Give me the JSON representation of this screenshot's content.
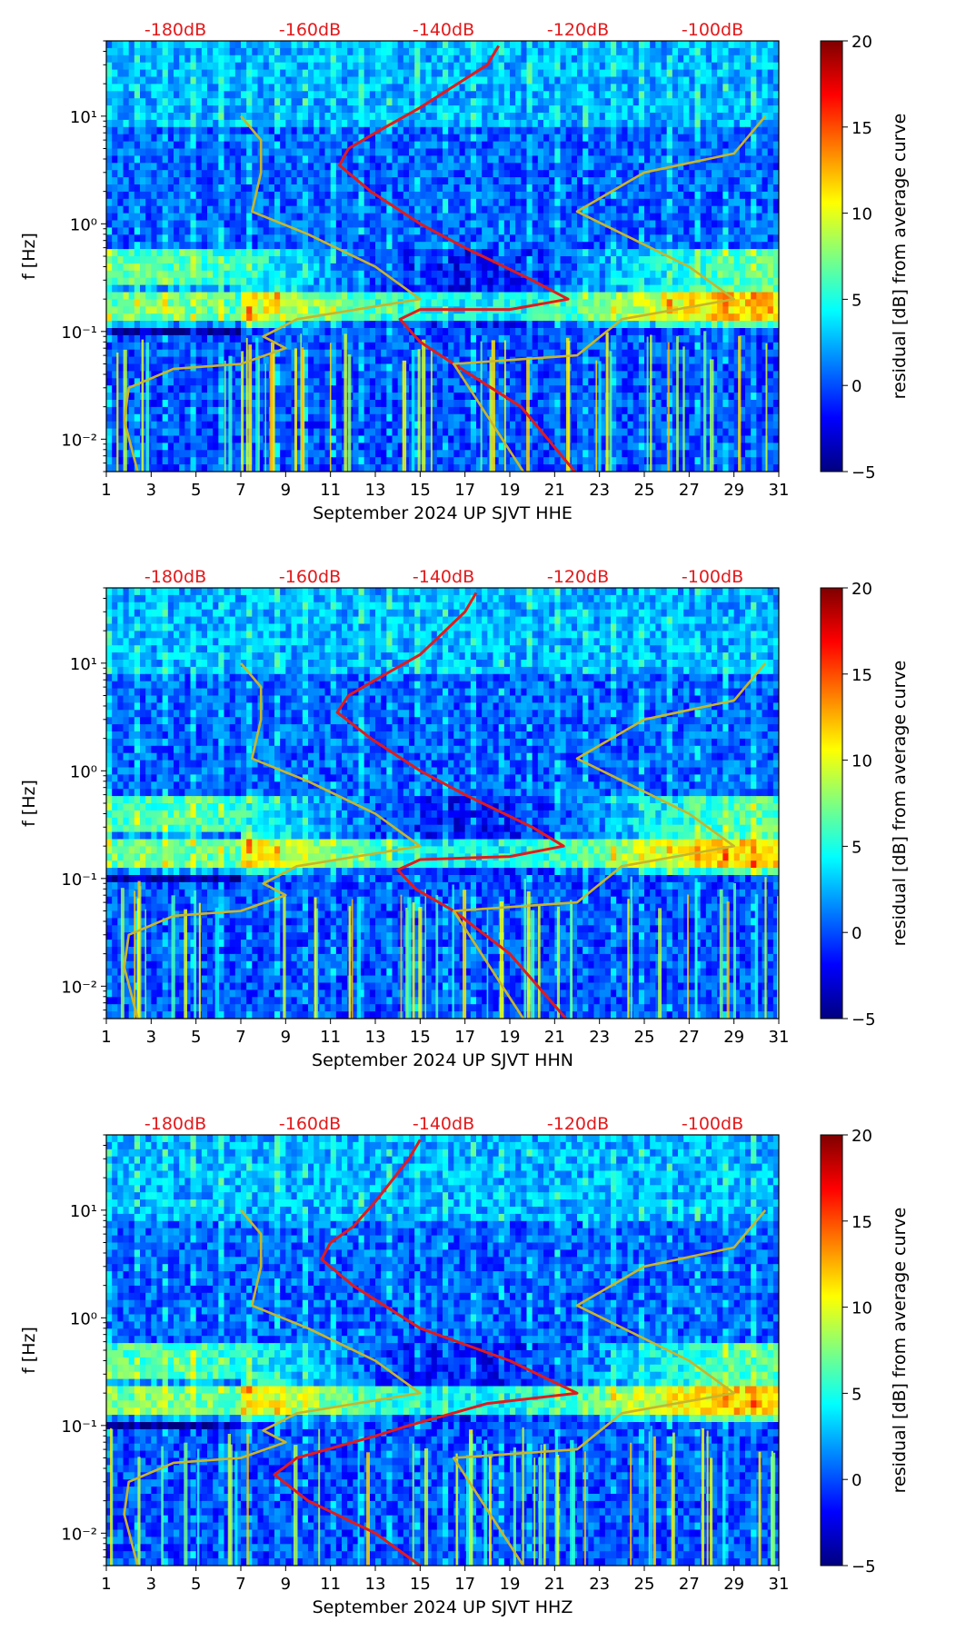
{
  "colors": {
    "noise_curve": "#e31a1c",
    "model_curve": "#c9b52a",
    "db_label": "#e31a1c",
    "colormap": [
      "#00007f",
      "#0000ff",
      "#007fff",
      "#00ffff",
      "#7fff7f",
      "#ffff00",
      "#ff7f00",
      "#ff0000",
      "#7f0000"
    ]
  },
  "chart_data": [
    {
      "type": "heatmap",
      "xlabel": "September 2024 UP SJVT  HHE",
      "ylabel": "f [Hz]",
      "x_ticks": [
        "1",
        "3",
        "5",
        "7",
        "9",
        "11",
        "13",
        "15",
        "17",
        "19",
        "21",
        "23",
        "25",
        "27",
        "29",
        "31"
      ],
      "xlim": [
        1,
        31
      ],
      "y_scale": "log",
      "y_ticks": [
        "10⁻²",
        "10⁻¹",
        "10⁰",
        "10¹"
      ],
      "ylim": [
        0.005,
        50
      ],
      "top_ticks": [
        "-180dB",
        "-160dB",
        "-140dB",
        "-120dB",
        "-100dB"
      ],
      "colorbar": {
        "label": "residual [dB] from average curve",
        "ticks": [
          "−5",
          "0",
          "5",
          "10",
          "15",
          "20"
        ],
        "range": [
          -5,
          20
        ]
      },
      "overlay_curves": [
        {
          "color": "red",
          "points": [
            [
              21.9,
              0.005
            ],
            [
              19.5,
              0.02
            ],
            [
              16.5,
              0.05
            ],
            [
              15.0,
              0.08
            ],
            [
              14.1,
              0.13
            ],
            [
              15.0,
              0.16
            ],
            [
              19.0,
              0.16
            ],
            [
              21.6,
              0.2
            ],
            [
              20.0,
              0.3
            ],
            [
              17.0,
              0.6
            ],
            [
              15.0,
              1.0
            ],
            [
              12.8,
              2.0
            ],
            [
              11.4,
              3.5
            ],
            [
              11.8,
              5.0
            ],
            [
              13.0,
              7.0
            ],
            [
              15.0,
              12.0
            ],
            [
              18.0,
              30.0
            ],
            [
              18.5,
              45.0
            ]
          ]
        },
        {
          "color": "olive",
          "points": [
            [
              2.4,
              0.005
            ],
            [
              1.8,
              0.015
            ],
            [
              2.0,
              0.03
            ],
            [
              4.0,
              0.045
            ],
            [
              7.0,
              0.05
            ],
            [
              9.0,
              0.07
            ],
            [
              8.0,
              0.09
            ],
            [
              9.5,
              0.13
            ],
            [
              15.0,
              0.2
            ],
            [
              13.0,
              0.4
            ],
            [
              10.0,
              0.8
            ],
            [
              7.5,
              1.3
            ],
            [
              7.9,
              3.0
            ],
            [
              7.9,
              6.0
            ],
            [
              7.0,
              10.0
            ]
          ]
        },
        {
          "color": "olive",
          "points": [
            [
              19.6,
              0.005
            ],
            [
              16.5,
              0.05
            ],
            [
              22.0,
              0.06
            ],
            [
              24.0,
              0.13
            ],
            [
              29.0,
              0.2
            ],
            [
              27.0,
              0.4
            ],
            [
              22.0,
              1.3
            ],
            [
              25.0,
              3.0
            ],
            [
              29.0,
              4.5
            ],
            [
              30.4,
              10.0
            ]
          ]
        }
      ]
    },
    {
      "type": "heatmap",
      "xlabel": "September 2024 UP SJVT  HHN",
      "ylabel": "f [Hz]",
      "x_ticks": [
        "1",
        "3",
        "5",
        "7",
        "9",
        "11",
        "13",
        "15",
        "17",
        "19",
        "21",
        "23",
        "25",
        "27",
        "29",
        "31"
      ],
      "xlim": [
        1,
        31
      ],
      "y_scale": "log",
      "y_ticks": [
        "10⁻²",
        "10⁻¹",
        "10⁰",
        "10¹"
      ],
      "ylim": [
        0.005,
        50
      ],
      "top_ticks": [
        "-180dB",
        "-160dB",
        "-140dB",
        "-120dB",
        "-100dB"
      ],
      "colorbar": {
        "label": "residual [dB] from average curve",
        "ticks": [
          "−5",
          "0",
          "5",
          "10",
          "15",
          "20"
        ],
        "range": [
          -5,
          20
        ]
      },
      "overlay_curves": [
        {
          "color": "red",
          "points": [
            [
              21.5,
              0.005
            ],
            [
              19.0,
              0.02
            ],
            [
              16.5,
              0.05
            ],
            [
              14.8,
              0.08
            ],
            [
              14.0,
              0.12
            ],
            [
              15.0,
              0.15
            ],
            [
              19.0,
              0.16
            ],
            [
              21.4,
              0.2
            ],
            [
              20.0,
              0.3
            ],
            [
              17.0,
              0.6
            ],
            [
              15.0,
              1.0
            ],
            [
              12.8,
              2.0
            ],
            [
              11.3,
              3.5
            ],
            [
              11.8,
              5.0
            ],
            [
              13.0,
              7.0
            ],
            [
              15.0,
              12.0
            ],
            [
              17.0,
              30.0
            ],
            [
              17.5,
              45.0
            ]
          ]
        },
        {
          "color": "olive",
          "points": [
            [
              2.4,
              0.005
            ],
            [
              1.8,
              0.015
            ],
            [
              2.0,
              0.03
            ],
            [
              4.0,
              0.045
            ],
            [
              7.0,
              0.05
            ],
            [
              9.0,
              0.07
            ],
            [
              8.0,
              0.09
            ],
            [
              9.5,
              0.13
            ],
            [
              15.0,
              0.2
            ],
            [
              13.0,
              0.4
            ],
            [
              10.0,
              0.8
            ],
            [
              7.5,
              1.3
            ],
            [
              7.9,
              3.0
            ],
            [
              7.9,
              6.0
            ],
            [
              7.0,
              10.0
            ]
          ]
        },
        {
          "color": "olive",
          "points": [
            [
              19.6,
              0.005
            ],
            [
              16.5,
              0.05
            ],
            [
              22.0,
              0.06
            ],
            [
              24.0,
              0.13
            ],
            [
              29.0,
              0.2
            ],
            [
              27.0,
              0.4
            ],
            [
              22.0,
              1.3
            ],
            [
              25.0,
              3.0
            ],
            [
              29.0,
              4.5
            ],
            [
              30.4,
              10.0
            ]
          ]
        }
      ]
    },
    {
      "type": "heatmap",
      "xlabel": "September 2024 UP SJVT  HHZ",
      "ylabel": "f [Hz]",
      "x_ticks": [
        "1",
        "3",
        "5",
        "7",
        "9",
        "11",
        "13",
        "15",
        "17",
        "19",
        "21",
        "23",
        "25",
        "27",
        "29",
        "31"
      ],
      "xlim": [
        1,
        31
      ],
      "y_scale": "log",
      "y_ticks": [
        "10⁻²",
        "10⁻¹",
        "10⁰",
        "10¹"
      ],
      "ylim": [
        0.005,
        50
      ],
      "top_ticks": [
        "-180dB",
        "-160dB",
        "-140dB",
        "-120dB",
        "-100dB"
      ],
      "colorbar": {
        "label": "residual [dB] from average curve",
        "ticks": [
          "−5",
          "0",
          "5",
          "10",
          "15",
          "20"
        ],
        "range": [
          -5,
          20
        ]
      },
      "overlay_curves": [
        {
          "color": "red",
          "points": [
            [
              15.0,
              0.005
            ],
            [
              13.0,
              0.01
            ],
            [
              10.0,
              0.02
            ],
            [
              8.5,
              0.035
            ],
            [
              9.5,
              0.05
            ],
            [
              13.0,
              0.08
            ],
            [
              14.5,
              0.1
            ],
            [
              18.0,
              0.16
            ],
            [
              22.0,
              0.2
            ],
            [
              19.0,
              0.4
            ],
            [
              15.0,
              0.8
            ],
            [
              12.0,
              2.0
            ],
            [
              10.6,
              3.5
            ],
            [
              11.0,
              5.0
            ],
            [
              12.0,
              7.0
            ],
            [
              13.0,
              12.0
            ],
            [
              14.5,
              30.0
            ],
            [
              15.0,
              45.0
            ]
          ]
        },
        {
          "color": "olive",
          "points": [
            [
              2.4,
              0.005
            ],
            [
              1.8,
              0.015
            ],
            [
              2.0,
              0.03
            ],
            [
              4.0,
              0.045
            ],
            [
              7.0,
              0.05
            ],
            [
              9.0,
              0.07
            ],
            [
              8.0,
              0.09
            ],
            [
              9.5,
              0.13
            ],
            [
              15.0,
              0.2
            ],
            [
              13.0,
              0.4
            ],
            [
              10.0,
              0.8
            ],
            [
              7.5,
              1.3
            ],
            [
              7.9,
              3.0
            ],
            [
              7.9,
              6.0
            ],
            [
              7.0,
              10.0
            ]
          ]
        },
        {
          "color": "olive",
          "points": [
            [
              19.6,
              0.005
            ],
            [
              16.5,
              0.05
            ],
            [
              22.0,
              0.06
            ],
            [
              24.0,
              0.13
            ],
            [
              29.0,
              0.2
            ],
            [
              27.0,
              0.4
            ],
            [
              22.0,
              1.3
            ],
            [
              25.0,
              3.0
            ],
            [
              29.0,
              4.5
            ],
            [
              30.4,
              10.0
            ]
          ]
        }
      ]
    }
  ]
}
